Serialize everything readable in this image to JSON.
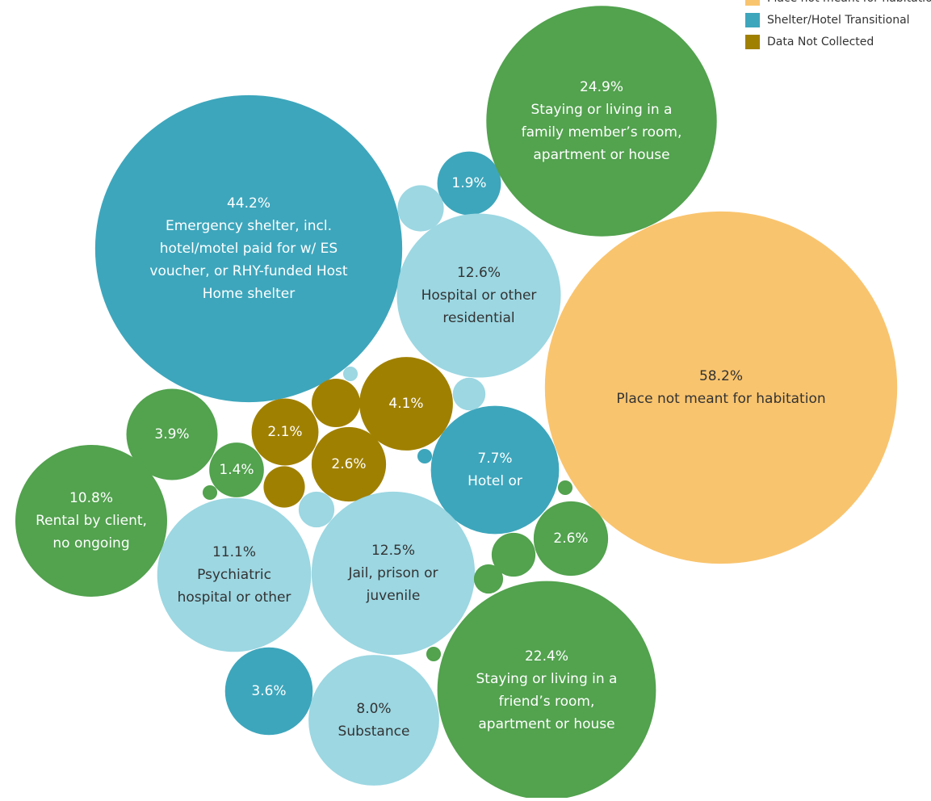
{
  "chart_data": {
    "type": "bubble",
    "series": [
      {
        "name": "Place not meant for habitation",
        "color": "#f9c46e",
        "values": [
          58.2
        ],
        "value_labels": [
          "58.2%"
        ],
        "labels": [
          [
            "Place not meant for habitation"
          ]
        ]
      },
      {
        "name": "Shelter/Hotel Transitional",
        "color": "#3da6bc",
        "values": [
          44.2,
          1.9,
          7.7,
          3.6,
          0.1
        ],
        "value_labels": [
          "44.2%",
          "1.9%",
          "7.7%",
          "3.6%",
          null
        ],
        "labels": [
          [
            "Emergency shelter, incl.",
            "hotel/motel paid for w/ ES",
            "voucher, or RHY-funded Host",
            "Home shelter"
          ],
          null,
          [
            "Hotel or"
          ],
          null,
          null
        ]
      },
      {
        "name": "Data Not Collected",
        "color": "#a08000",
        "values": [
          4.1,
          2.1,
          2.6,
          1.1,
          0.8
        ],
        "value_labels": [
          "4.1%",
          "2.1%",
          "2.6%",
          null,
          null
        ],
        "labels": [
          null,
          null,
          null,
          null,
          null
        ]
      },
      {
        "name": null,
        "color": "#9cd7e2",
        "values": [
          12.6,
          11.1,
          12.5,
          8.0,
          1.0,
          0.5,
          0.6,
          0.1
        ],
        "value_labels": [
          "12.6%",
          "11.1%",
          "12.5%",
          "8.0%",
          null,
          null,
          null,
          null
        ],
        "labels": [
          [
            "Hospital or other",
            "residential"
          ],
          [
            "Psychiatric",
            "hospital or other"
          ],
          [
            "Jail, prison or",
            "juvenile"
          ],
          [
            "Substance"
          ],
          null,
          null,
          null,
          null
        ]
      },
      {
        "name": null,
        "color": "#52a24e",
        "values": [
          24.9,
          22.4,
          3.9,
          10.8,
          1.4,
          2.6,
          0.9,
          0.4,
          0.1,
          0.1,
          0.1
        ],
        "value_labels": [
          "24.9%",
          "22.4%",
          "3.9%",
          "10.8%",
          "1.4%",
          "2.6%",
          null,
          null,
          null,
          null,
          null
        ],
        "labels": [
          [
            "Staying or living in a",
            "family member’s room,",
            "apartment or house"
          ],
          [
            "Staying or living in a",
            "friend’s room,",
            "apartment or house"
          ],
          null,
          [
            "Rental by client,",
            "no ongoing"
          ],
          null,
          null,
          null,
          null,
          null,
          null,
          null
        ]
      }
    ]
  }
}
